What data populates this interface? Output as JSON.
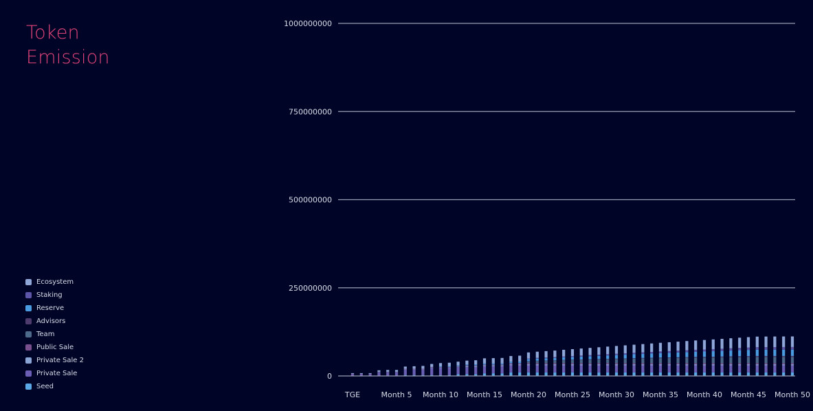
{
  "title": [
    "Token",
    "Emission"
  ],
  "chart_data": {
    "type": "bar",
    "stacked": true,
    "ylim": [
      0,
      1000000000
    ],
    "yticks": [
      0,
      250000000,
      500000000,
      750000000,
      1000000000
    ],
    "ytick_labels": [
      "0",
      "250000000",
      "500000000",
      "750000000",
      "1000000000"
    ],
    "grid": true,
    "legend_position": "bottom-left",
    "categories": [
      "TGE",
      "Month 1",
      "Month 2",
      "Month 3",
      "Month 4",
      "Month 5",
      "Month 6",
      "Month 7",
      "Month 8",
      "Month 9",
      "Month 10",
      "Month 11",
      "Month 12",
      "Month 13",
      "Month 14",
      "Month 15",
      "Month 16",
      "Month 17",
      "Month 18",
      "Month 19",
      "Month 20",
      "Month 21",
      "Month 22",
      "Month 23",
      "Month 24",
      "Month 25",
      "Month 26",
      "Month 27",
      "Month 28",
      "Month 29",
      "Month 30",
      "Month 31",
      "Month 32",
      "Month 33",
      "Month 34",
      "Month 35",
      "Month 36",
      "Month 37",
      "Month 38",
      "Month 39",
      "Month 40",
      "Month 41",
      "Month 42",
      "Month 43",
      "Month 44",
      "Month 45",
      "Month 46",
      "Month 47",
      "Month 48",
      "Month 49",
      "Month 50"
    ],
    "xtick_labels": [
      "TGE",
      "Month 5",
      "Month 10",
      "Month 15",
      "Month 20",
      "Month 25",
      "Month 30",
      "Month 35",
      "Month 40",
      "Month 45",
      "Month 50"
    ],
    "series": [
      {
        "name": "Seed",
        "color": "#5aa9e6",
        "values": [
          0,
          0,
          0,
          0,
          0,
          0,
          2500000,
          2500000,
          2500000,
          2500000,
          2500000,
          2500000,
          5000000,
          5000000,
          5000000,
          7500000,
          7500000,
          7500000,
          10000000,
          10000000,
          10000000,
          10000000,
          10000000,
          10000000,
          10000000,
          10000000,
          10000000,
          10000000,
          10000000,
          10000000,
          10000000,
          10000000,
          10000000,
          10000000,
          10000000,
          10000000,
          10000000,
          10000000,
          10000000,
          10000000,
          10000000,
          10000000,
          10000000,
          10000000,
          10000000,
          10000000,
          10000000,
          10000000,
          10000000,
          10000000,
          10000000
        ]
      },
      {
        "name": "Private Sale",
        "color": "#6a5fb5",
        "values": [
          5000000,
          5000000,
          5000000,
          10000000,
          10000000,
          10000000,
          15000000,
          15000000,
          15000000,
          20000000,
          20000000,
          20000000,
          20000000,
          20000000,
          20000000,
          20000000,
          20000000,
          20000000,
          20000000,
          20000000,
          20000000,
          20000000,
          20000000,
          20000000,
          20000000,
          20000000,
          20000000,
          20000000,
          20000000,
          20000000,
          20000000,
          20000000,
          20000000,
          20000000,
          20000000,
          20000000,
          20000000,
          20000000,
          20000000,
          20000000,
          20000000,
          20000000,
          20000000,
          20000000,
          20000000,
          20000000,
          20000000,
          20000000,
          20000000,
          20000000,
          20000000
        ]
      },
      {
        "name": "Private Sale 2",
        "color": "#8aa4d6",
        "values": [
          0,
          0,
          0,
          1000000,
          1000000,
          1000000,
          1500000,
          1500000,
          1500000,
          1500000,
          1500000,
          1500000,
          1500000,
          3000000,
          3000000,
          3000000,
          3000000,
          3000000,
          3000000,
          3000000,
          3000000,
          3000000,
          3000000,
          3000000,
          3000000,
          3000000,
          3000000,
          3000000,
          3000000,
          3000000,
          3000000,
          3000000,
          3000000,
          3000000,
          3000000,
          3000000,
          3000000,
          3000000,
          3000000,
          3000000,
          3000000,
          3000000,
          3000000,
          3000000,
          3000000,
          3000000,
          3000000,
          3000000,
          3000000,
          3000000,
          3000000
        ]
      },
      {
        "name": "Public Sale",
        "color": "#7a4f8e",
        "values": [
          1000000,
          1000000,
          1000000,
          1000000,
          1000000,
          1000000,
          1500000,
          1500000,
          1500000,
          1500000,
          1500000,
          1500000,
          1500000,
          2000000,
          2000000,
          2000000,
          2000000,
          2000000,
          3000000,
          3000000,
          3000000,
          3000000,
          3000000,
          3000000,
          3000000,
          3000000,
          3000000,
          3000000,
          3000000,
          3000000,
          3000000,
          3000000,
          3000000,
          3000000,
          3000000,
          3000000,
          3000000,
          3000000,
          3000000,
          3000000,
          3000000,
          3000000,
          3000000,
          3000000,
          3000000,
          3000000,
          3000000,
          3000000,
          3000000,
          3000000,
          3000000
        ]
      },
      {
        "name": "Team",
        "color": "#4e6a8a",
        "values": [
          0,
          0,
          0,
          0,
          0,
          0,
          0,
          0,
          0,
          0,
          0,
          0,
          0,
          0,
          0,
          0,
          0,
          0,
          0,
          0,
          6000000,
          7000000,
          7500000,
          8000000,
          9000000,
          9500000,
          10000000,
          10500000,
          11000000,
          11500000,
          12000000,
          12500000,
          13000000,
          13500000,
          14000000,
          14500000,
          14800000,
          15200000,
          15600000,
          16000000,
          16000000,
          16300000,
          16600000,
          17000000,
          17300000,
          17600000,
          17800000,
          17800000,
          17800000,
          17800000,
          17800000
        ]
      },
      {
        "name": "Advisors",
        "color": "#4d3b6e",
        "values": [
          0,
          0,
          0,
          0,
          0,
          0,
          0,
          0,
          0,
          0,
          0,
          0,
          0,
          0,
          0,
          0,
          0,
          0,
          0,
          0,
          200000,
          300000,
          400000,
          500000,
          600000,
          700000,
          800000,
          900000,
          1000000,
          1100000,
          1200000,
          1300000,
          1400000,
          1500000,
          1600000,
          1700000,
          1800000,
          1900000,
          2000000,
          2100000,
          2200000,
          2300000,
          2400000,
          2500000,
          2600000,
          2700000,
          2800000,
          2800000,
          2800000,
          2800000,
          2800000
        ]
      },
      {
        "name": "Reserve",
        "color": "#4a9be0",
        "values": [
          0,
          0,
          0,
          0,
          0,
          0,
          0,
          0,
          0,
          0,
          2000000,
          2000000,
          2000000,
          2500000,
          3000000,
          3000000,
          3000000,
          3000000,
          4500000,
          5000000,
          5500000,
          6000000,
          6300000,
          6500000,
          7000000,
          7500000,
          8000000,
          8500000,
          9000000,
          9500000,
          10000000,
          10500000,
          11000000,
          11500000,
          12000000,
          12500000,
          13000000,
          13500000,
          14000000,
          14500000,
          15000000,
          15500000,
          16000000,
          16500000,
          17000000,
          17500000,
          18000000,
          18000000,
          18000000,
          18000000,
          18000000
        ]
      },
      {
        "name": "Staking",
        "color": "#5c55a8",
        "values": [
          0,
          0,
          0,
          0,
          0,
          0,
          0,
          0,
          0,
          0,
          0,
          0,
          0,
          0,
          0,
          0,
          0,
          0,
          0,
          0,
          2000000,
          2000000,
          2200000,
          2500000,
          2600000,
          2800000,
          3000000,
          3200000,
          3400000,
          3600000,
          3800000,
          4000000,
          4200000,
          4400000,
          4600000,
          4800000,
          5000000,
          5200000,
          5400000,
          5600000,
          5800000,
          6000000,
          6200000,
          6400000,
          6600000,
          6800000,
          7000000,
          7200000,
          7300000,
          7400000,
          7500000
        ]
      },
      {
        "name": "Ecosystem",
        "color": "#8fa7d8",
        "values": [
          2000000,
          2000000,
          2000000,
          4000000,
          5000000,
          5000000,
          6000000,
          7000000,
          8000000,
          8500000,
          9000000,
          10000000,
          10500000,
          11000000,
          11500000,
          14500000,
          15000000,
          15500000,
          16000000,
          16500000,
          17000000,
          17500000,
          18000000,
          18500000,
          19000000,
          19500000,
          20000000,
          20500000,
          21000000,
          21500000,
          22000000,
          22500000,
          23000000,
          23500000,
          24000000,
          24500000,
          25000000,
          25500000,
          26000000,
          26500000,
          27000000,
          27500000,
          28000000,
          28500000,
          29000000,
          29500000,
          30000000,
          30000000,
          30000000,
          30000000,
          30000000
        ]
      }
    ]
  }
}
